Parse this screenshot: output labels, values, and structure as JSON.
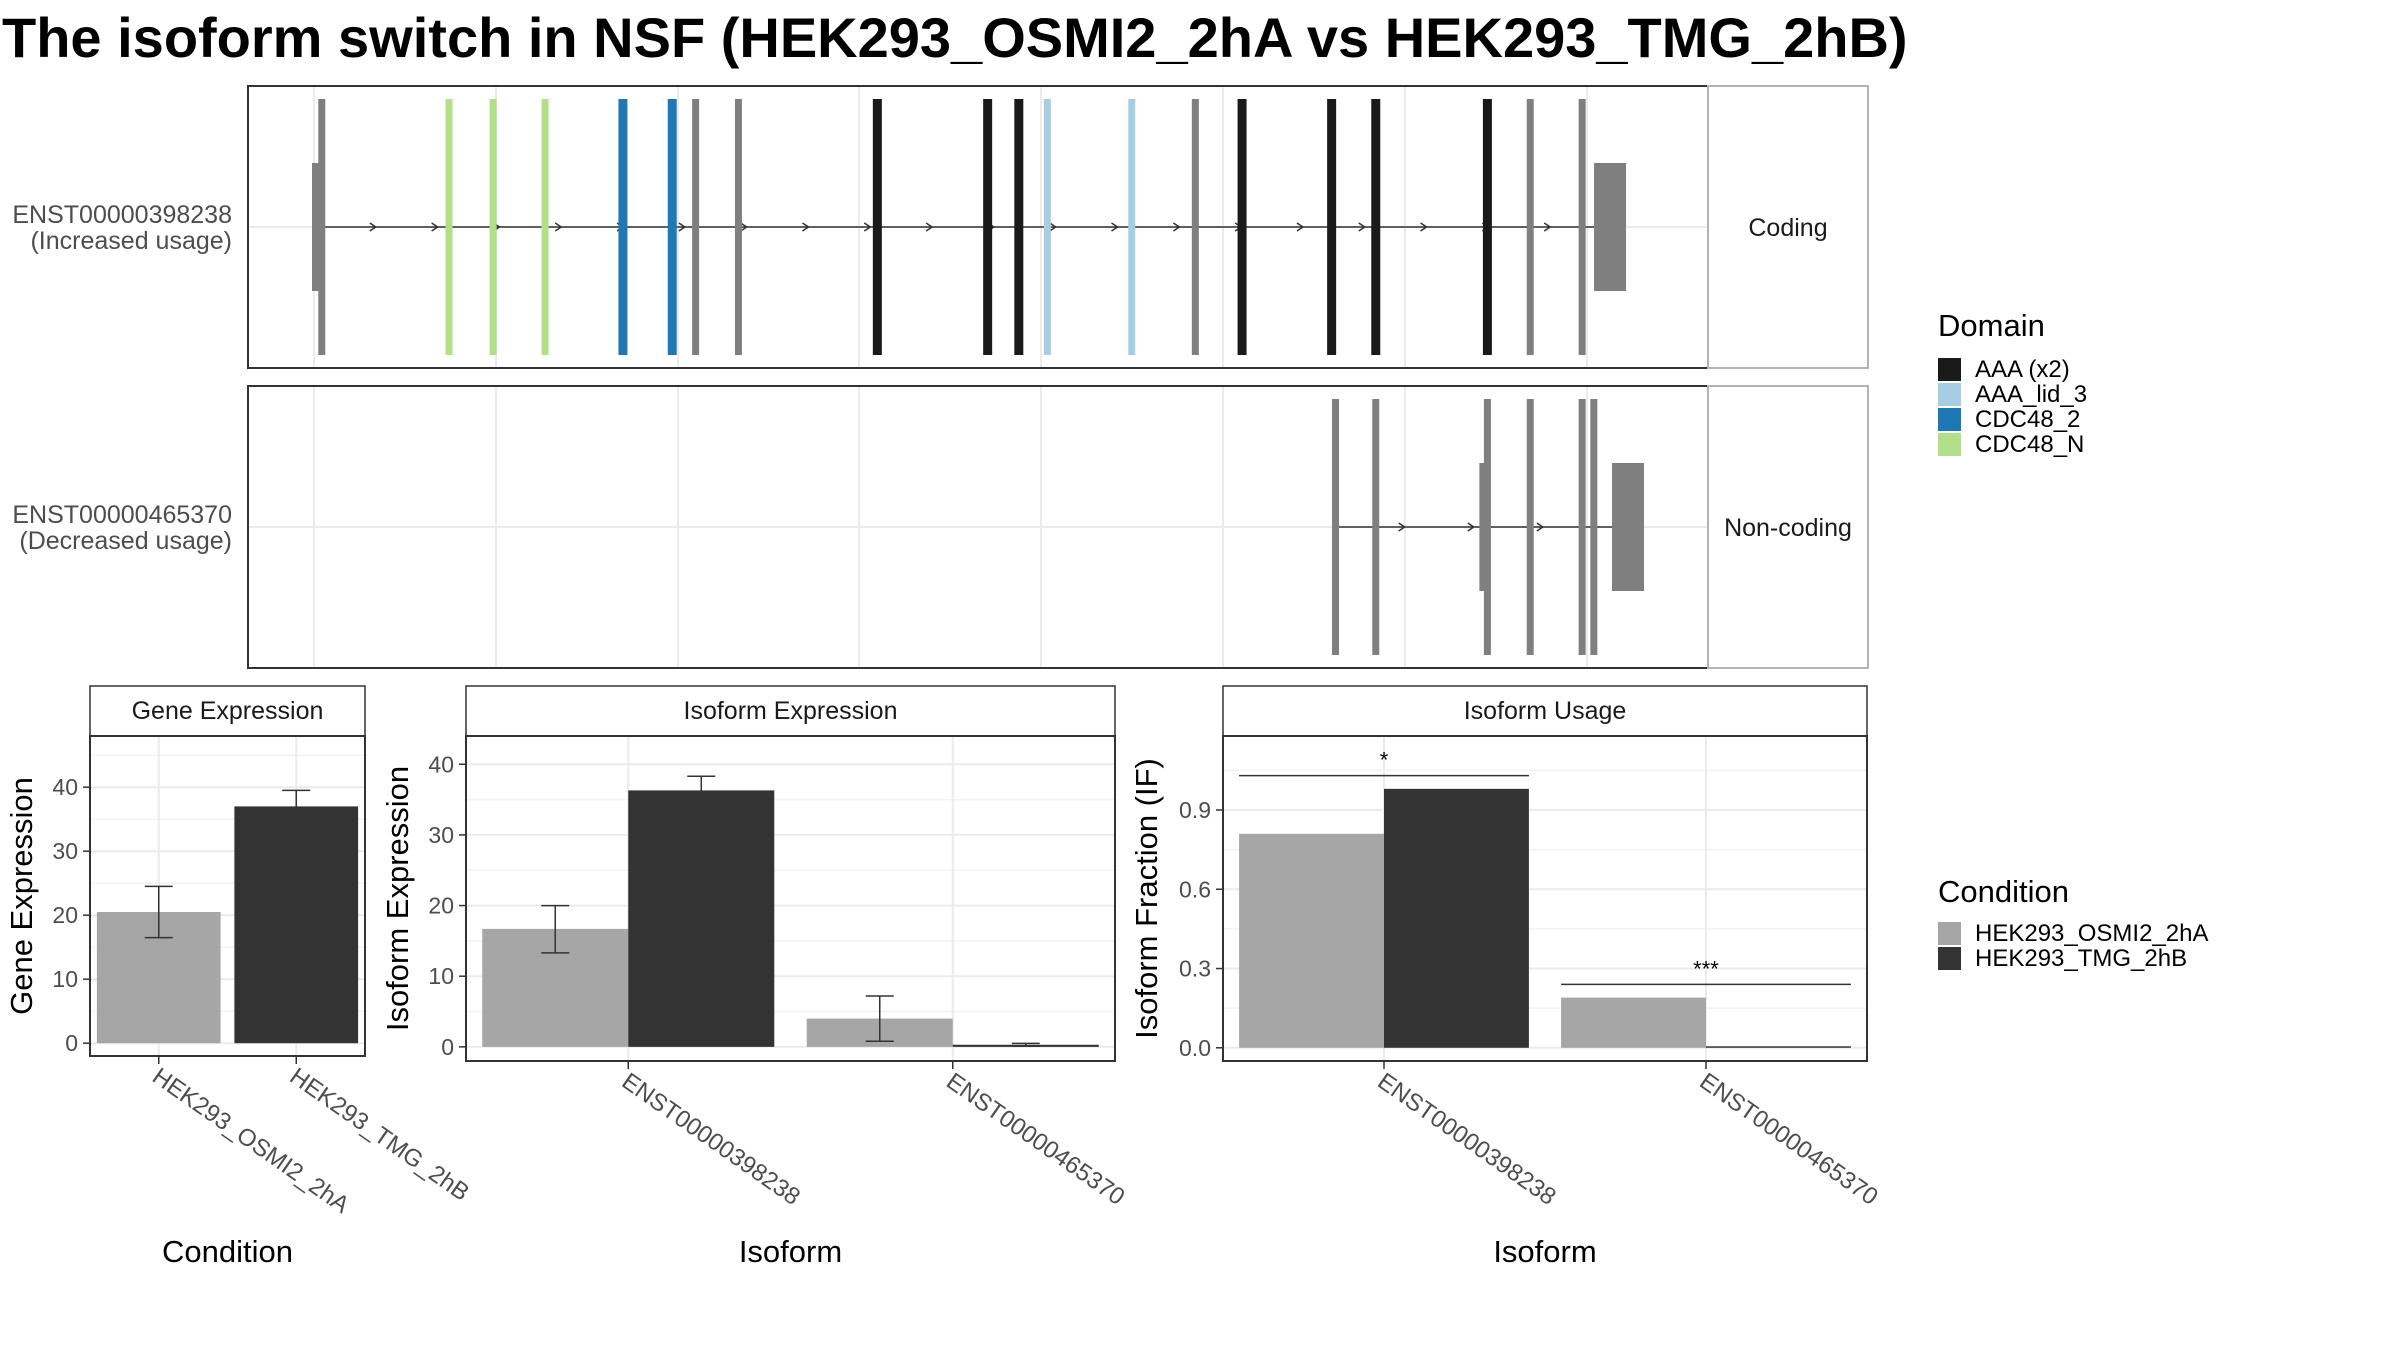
{
  "title": "The isoform switch in NSF (HEK293_OSMI2_2hA vs HEK293_TMG_2hB)",
  "colors": {
    "exon": "#7f7f7f",
    "AAA (x2)": "#1a1a1a",
    "AAA_lid_3": "#a6cee3",
    "CDC48_2": "#1f78b4",
    "CDC48_N": "#b2df8a",
    "HEK293_OSMI2_2hA": "#a6a6a6",
    "HEK293_TMG_2hB": "#333333"
  },
  "transcripts": [
    {
      "id": "ENST00000398238",
      "usage": "(Increased usage)",
      "type": "Coding",
      "span": [
        0.0,
        1.0
      ],
      "utr": [
        [
          0.0,
          0.006
        ],
        [
          0.98,
          1.0
        ]
      ],
      "exons": [
        {
          "pos": 0.006,
          "domain": null
        },
        {
          "pos": 0.104,
          "domain": "CDC48_N"
        },
        {
          "pos": 0.138,
          "domain": "CDC48_N"
        },
        {
          "pos": 0.178,
          "domain": "CDC48_N"
        },
        {
          "pos": 0.238,
          "domain": "CDC48_2"
        },
        {
          "pos": 0.276,
          "domain": "CDC48_2"
        },
        {
          "pos": 0.294,
          "domain": null
        },
        {
          "pos": 0.327,
          "domain": null
        },
        {
          "pos": 0.434,
          "domain": "AAA (x2)"
        },
        {
          "pos": 0.519,
          "domain": "AAA (x2)"
        },
        {
          "pos": 0.543,
          "domain": "AAA (x2)"
        },
        {
          "pos": 0.565,
          "domain": "AAA_lid_3"
        },
        {
          "pos": 0.63,
          "domain": "AAA_lid_3"
        },
        {
          "pos": 0.679,
          "domain": null
        },
        {
          "pos": 0.715,
          "domain": "AAA (x2)"
        },
        {
          "pos": 0.784,
          "domain": "AAA (x2)"
        },
        {
          "pos": 0.818,
          "domain": "AAA (x2)"
        },
        {
          "pos": 0.904,
          "domain": "AAA (x2)"
        },
        {
          "pos": 0.937,
          "domain": null
        },
        {
          "pos": 0.977,
          "domain": null
        }
      ]
    },
    {
      "id": "ENST00000465370",
      "usage": "(Decreased usage)",
      "type": "Non-coding",
      "span": [
        0.787,
        1.0
      ],
      "utr": [],
      "exons": [
        {
          "pos": 0.787,
          "domain": null
        },
        {
          "pos": 0.818,
          "domain": null
        },
        {
          "pos": 0.904,
          "domain": null
        },
        {
          "pos": 0.937,
          "domain": null
        },
        {
          "pos": 0.977,
          "domain": null
        },
        {
          "pos": 0.986,
          "domain": null
        }
      ]
    }
  ],
  "legend_domain": {
    "title": "Domain",
    "items": [
      "AAA (x2)",
      "AAA_lid_3",
      "CDC48_2",
      "CDC48_N"
    ]
  },
  "legend_condition": {
    "title": "Condition",
    "items": [
      "HEK293_OSMI2_2hA",
      "HEK293_TMG_2hB"
    ]
  },
  "chart_data": [
    {
      "type": "bar",
      "title": "Gene Expression",
      "xlabel": "Condition",
      "ylabel": "Gene Expression",
      "categories": [
        "HEK293_OSMI2_2hA",
        "HEK293_TMG_2hB"
      ],
      "values": [
        20.5,
        37.0
      ],
      "errors": [
        [
          16.5,
          24.5
        ],
        [
          34.5,
          39.5
        ]
      ],
      "ylim": [
        -2,
        48
      ],
      "yticks": [
        0,
        10,
        20,
        30,
        40
      ]
    },
    {
      "type": "bar",
      "title": "Isoform Expression",
      "xlabel": "Isoform",
      "ylabel": "Isoform Expression",
      "categories": [
        "ENST00000398238",
        "ENST00000465370"
      ],
      "series": [
        {
          "name": "HEK293_OSMI2_2hA",
          "values": [
            16.7,
            4.0
          ],
          "errors": [
            [
              13.3,
              20.0
            ],
            [
              0.8,
              7.2
            ]
          ]
        },
        {
          "name": "HEK293_TMG_2hB",
          "values": [
            36.3,
            0.3
          ],
          "errors": [
            [
              34.3,
              38.3
            ],
            [
              0.1,
              0.5
            ]
          ]
        }
      ],
      "ylim": [
        -2,
        44
      ],
      "yticks": [
        0,
        10,
        20,
        30,
        40
      ]
    },
    {
      "type": "bar",
      "title": "Isoform Usage",
      "xlabel": "Isoform",
      "ylabel": "Isoform Fraction (IF)",
      "categories": [
        "ENST00000398238",
        "ENST00000465370"
      ],
      "series": [
        {
          "name": "HEK293_OSMI2_2hA",
          "values": [
            0.81,
            0.19
          ]
        },
        {
          "name": "HEK293_TMG_2hB",
          "values": [
            0.98,
            0.0
          ]
        }
      ],
      "significance": [
        "*",
        "***"
      ],
      "ylim": [
        -0.05,
        1.18
      ],
      "yticks": [
        0.0,
        0.3,
        0.6,
        0.9
      ],
      "ytick_labels": [
        "0.0",
        "0.3",
        "0.6",
        "0.9"
      ]
    }
  ]
}
